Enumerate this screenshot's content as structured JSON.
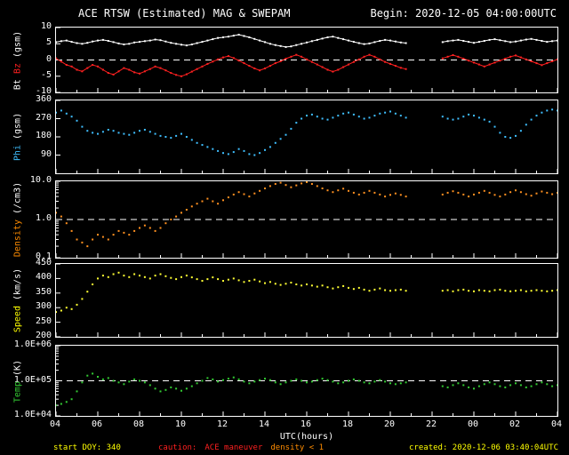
{
  "header": {
    "title": "ACE RTSW (Estimated) MAG & SWEPAM",
    "begin_label": "Begin: 2020-12-05 04:00:00UTC"
  },
  "x_axis": {
    "label": "UTC(hours)",
    "range": [
      4,
      28
    ],
    "ticks": [
      "04",
      "06",
      "08",
      "10",
      "12",
      "14",
      "16",
      "18",
      "20",
      "22",
      "00",
      "02",
      "04"
    ],
    "tick_values": [
      4,
      6,
      8,
      10,
      12,
      14,
      16,
      18,
      20,
      22,
      24,
      26,
      28
    ]
  },
  "footer": {
    "start": "start DOY: 340",
    "caution_label": "caution:",
    "caution_text": "ACE maneuver",
    "caution_density": "density < 1",
    "created": "created: 2020-12-06 03:40:04UTC"
  },
  "colors": {
    "foreground": "#ffffff",
    "background": "#000000",
    "yellow": "#ffff00",
    "red": "#ff2020",
    "orange": "#ff8c00",
    "cyan": "#3fbfff",
    "green": "#33cc33"
  },
  "chart_data": [
    {
      "id": "bt-bz",
      "type": "scatter",
      "title": "Bt / Bz (gsm)",
      "yscale": "linear",
      "ylim": [
        -10,
        10
      ],
      "yticks": [
        {
          "v": 10,
          "label": "10"
        },
        {
          "v": 5,
          "label": "5"
        },
        {
          "v": 0,
          "label": "0"
        },
        {
          "v": -5,
          "label": "-5"
        },
        {
          "v": -10,
          "label": "-10"
        }
      ],
      "refline": 0,
      "ylabel": "Bt Bz (gsm)",
      "ylabel_parts": [
        {
          "text": "Bt ",
          "color": "#ffffff"
        },
        {
          "text": "Bz",
          "color": "#ff2020"
        },
        {
          "text": " (gsm)",
          "color": "#ffffff"
        }
      ],
      "x": {
        "start": 4,
        "step": 0.25,
        "unit": "UTC hours"
      },
      "series": [
        {
          "name": "Bt",
          "color": "#ffffff",
          "line": true,
          "y": [
            5.5,
            5.8,
            6.0,
            5.6,
            5.2,
            5.0,
            5.3,
            5.7,
            6.0,
            6.2,
            5.9,
            5.5,
            5.1,
            4.8,
            5.0,
            5.4,
            5.6,
            5.8,
            6.0,
            6.3,
            6.1,
            5.7,
            5.3,
            5.0,
            4.7,
            4.5,
            4.8,
            5.2,
            5.6,
            6.0,
            6.4,
            6.8,
            7.0,
            7.2,
            7.5,
            7.8,
            7.4,
            7.0,
            6.5,
            6.0,
            5.5,
            5.0,
            4.6,
            4.3,
            4.0,
            4.2,
            4.6,
            5.0,
            5.4,
            5.8,
            6.2,
            6.6,
            7.0,
            7.2,
            6.8,
            6.4,
            6.0,
            5.6,
            5.2,
            4.9,
            5.1,
            5.5,
            5.9,
            6.2,
            6.0,
            5.7,
            5.4,
            5.2,
            null,
            null,
            null,
            null,
            null,
            null,
            5.5,
            5.8,
            6.0,
            6.2,
            5.9,
            5.6,
            5.3,
            5.6,
            5.9,
            6.2,
            6.4,
            6.1,
            5.8,
            5.5,
            5.7,
            6.0,
            6.3,
            6.5,
            6.2,
            5.9,
            5.6,
            5.8,
            6.0
          ]
        },
        {
          "name": "Bz",
          "color": "#ff2020",
          "line": true,
          "y": [
            0.5,
            -0.5,
            -1.5,
            -2.0,
            -3.0,
            -3.5,
            -2.5,
            -1.5,
            -2.0,
            -3.0,
            -4.0,
            -4.5,
            -3.5,
            -2.5,
            -3.0,
            -3.8,
            -4.2,
            -3.5,
            -2.8,
            -2.0,
            -2.5,
            -3.2,
            -4.0,
            -4.6,
            -5.0,
            -4.4,
            -3.6,
            -2.8,
            -2.0,
            -1.2,
            -0.5,
            0.2,
            0.8,
            1.2,
            0.6,
            -0.2,
            -1.0,
            -1.8,
            -2.6,
            -3.2,
            -2.6,
            -1.8,
            -1.0,
            -0.4,
            0.4,
            1.0,
            1.6,
            1.0,
            0.2,
            -0.6,
            -1.4,
            -2.2,
            -3.0,
            -3.6,
            -3.0,
            -2.2,
            -1.4,
            -0.6,
            0.2,
            1.0,
            1.6,
            1.0,
            0.2,
            -0.6,
            -1.2,
            -1.8,
            -2.4,
            -2.8,
            null,
            null,
            null,
            null,
            null,
            null,
            0.5,
            1.0,
            1.5,
            1.0,
            0.4,
            -0.2,
            -0.8,
            -1.4,
            -2.0,
            -1.4,
            -0.8,
            -0.2,
            0.4,
            1.0,
            1.4,
            0.8,
            0.2,
            -0.4,
            -1.0,
            -1.6,
            -1.0,
            -0.4,
            0.2
          ]
        }
      ]
    },
    {
      "id": "phi",
      "type": "scatter",
      "title": "Phi (gsm)",
      "yscale": "linear",
      "ylim": [
        0,
        360
      ],
      "yticks": [
        {
          "v": 360,
          "label": "360"
        },
        {
          "v": 270,
          "label": "270"
        },
        {
          "v": 180,
          "label": "180"
        },
        {
          "v": 90,
          "label": "90"
        }
      ],
      "refline": null,
      "ylabel": "Phi (gsm)",
      "ylabel_parts": [
        {
          "text": "Phi",
          "color": "#3fbfff"
        },
        {
          "text": " (gsm)",
          "color": "#ffffff"
        }
      ],
      "x": {
        "start": 4,
        "step": 0.25,
        "unit": "UTC hours"
      },
      "series": [
        {
          "name": "Phi",
          "color": "#3fbfff",
          "line": false,
          "y": [
            300,
            310,
            295,
            280,
            260,
            230,
            210,
            200,
            195,
            205,
            215,
            210,
            200,
            195,
            190,
            200,
            210,
            215,
            205,
            195,
            185,
            180,
            175,
            185,
            195,
            180,
            165,
            150,
            140,
            130,
            120,
            110,
            100,
            95,
            105,
            120,
            110,
            95,
            90,
            100,
            115,
            130,
            150,
            170,
            190,
            220,
            250,
            270,
            285,
            290,
            280,
            270,
            265,
            275,
            285,
            295,
            300,
            290,
            280,
            270,
            275,
            285,
            295,
            300,
            305,
            295,
            285,
            275,
            null,
            null,
            null,
            null,
            null,
            null,
            280,
            270,
            265,
            270,
            280,
            290,
            285,
            275,
            265,
            255,
            230,
            200,
            180,
            175,
            185,
            210,
            240,
            265,
            285,
            300,
            310,
            315,
            310
          ]
        }
      ]
    },
    {
      "id": "density",
      "type": "scatter",
      "title": "Density (/cm3)",
      "yscale": "log",
      "ylim": [
        0.1,
        10
      ],
      "yticks": [
        {
          "v": 10,
          "label": "10.0"
        },
        {
          "v": 1,
          "label": "1.0"
        },
        {
          "v": 0.1,
          "label": "0.1"
        }
      ],
      "refline": 1,
      "ylabel": "Density (/cm3)",
      "ylabel_parts": [
        {
          "text": "Density",
          "color": "#ff8c00"
        },
        {
          "text": " (/cm3)",
          "color": "#ffffff"
        }
      ],
      "x": {
        "start": 4,
        "step": 0.25,
        "unit": "UTC hours"
      },
      "series": [
        {
          "name": "Density",
          "color": "#ff9020",
          "line": false,
          "y": [
            1.5,
            1.2,
            0.8,
            0.5,
            0.3,
            0.25,
            0.2,
            0.3,
            0.4,
            0.35,
            0.3,
            0.4,
            0.5,
            0.45,
            0.4,
            0.5,
            0.6,
            0.7,
            0.6,
            0.5,
            0.6,
            0.8,
            1.0,
            1.2,
            1.5,
            1.8,
            2.2,
            2.6,
            3.0,
            3.5,
            3.0,
            2.6,
            3.2,
            3.8,
            4.5,
            5.2,
            4.6,
            4.0,
            4.8,
            5.6,
            6.5,
            7.5,
            8.5,
            9.2,
            8.0,
            7.0,
            7.8,
            8.8,
            9.5,
            8.5,
            7.5,
            6.5,
            5.8,
            5.2,
            5.8,
            6.4,
            5.6,
            5.0,
            4.5,
            5.0,
            5.6,
            5.0,
            4.5,
            4.0,
            4.4,
            4.8,
            4.4,
            4.0,
            null,
            null,
            null,
            null,
            null,
            null,
            4.5,
            5.0,
            5.5,
            5.0,
            4.5,
            4.0,
            4.5,
            5.0,
            5.6,
            5.0,
            4.4,
            4.0,
            4.5,
            5.2,
            5.8,
            5.2,
            4.6,
            4.2,
            4.8,
            5.4,
            5.0,
            4.6,
            5.0
          ]
        }
      ]
    },
    {
      "id": "speed",
      "type": "scatter",
      "title": "Speed (km/s)",
      "yscale": "linear",
      "ylim": [
        200,
        450
      ],
      "yticks": [
        {
          "v": 450,
          "label": "450"
        },
        {
          "v": 400,
          "label": "400"
        },
        {
          "v": 350,
          "label": "350"
        },
        {
          "v": 300,
          "label": "300"
        },
        {
          "v": 250,
          "label": "250"
        },
        {
          "v": 200,
          "label": "200"
        }
      ],
      "refline": null,
      "ylabel": "Speed (km/s)",
      "ylabel_parts": [
        {
          "text": "Speed",
          "color": "#ffff00"
        },
        {
          "text": " (km/s)",
          "color": "#ffffff"
        }
      ],
      "x": {
        "start": 4,
        "step": 0.25,
        "unit": "UTC hours"
      },
      "series": [
        {
          "name": "Speed",
          "color": "#ffff33",
          "line": false,
          "y": [
            285,
            290,
            300,
            295,
            310,
            330,
            355,
            380,
            400,
            410,
            405,
            415,
            420,
            410,
            405,
            415,
            410,
            405,
            400,
            410,
            415,
            408,
            402,
            398,
            405,
            410,
            404,
            398,
            392,
            398,
            404,
            398,
            392,
            396,
            400,
            394,
            388,
            392,
            396,
            390,
            384,
            388,
            382,
            378,
            382,
            386,
            380,
            376,
            380,
            376,
            372,
            376,
            370,
            366,
            370,
            374,
            368,
            364,
            368,
            362,
            358,
            362,
            366,
            360,
            358,
            360,
            362,
            358,
            null,
            null,
            null,
            null,
            null,
            null,
            358,
            360,
            356,
            360,
            362,
            358,
            356,
            360,
            358,
            356,
            360,
            362,
            358,
            356,
            358,
            360,
            356,
            358,
            360,
            358,
            356,
            358,
            360
          ]
        }
      ]
    },
    {
      "id": "temp",
      "type": "scatter",
      "title": "Temp (K)",
      "yscale": "log",
      "ylim": [
        10000,
        1000000
      ],
      "yticks": [
        {
          "v": 1000000,
          "label": "1.0E+06"
        },
        {
          "v": 100000,
          "label": "1.0E+05"
        },
        {
          "v": 10000,
          "label": "1.0E+04"
        }
      ],
      "refline": 100000,
      "ylabel": "Temp (K)",
      "ylabel_parts": [
        {
          "text": "Temp",
          "color": "#33cc33"
        },
        {
          "text": " (K)",
          "color": "#ffffff"
        }
      ],
      "x": {
        "start": 4,
        "step": 0.25,
        "unit": "UTC hours"
      },
      "series": [
        {
          "name": "Temp",
          "color": "#33cc33",
          "line": false,
          "y": [
            20000,
            22000,
            25000,
            30000,
            50000,
            90000,
            140000,
            160000,
            130000,
            110000,
            120000,
            100000,
            90000,
            80000,
            95000,
            110000,
            100000,
            90000,
            75000,
            60000,
            50000,
            55000,
            65000,
            60000,
            52000,
            60000,
            70000,
            85000,
            100000,
            120000,
            110000,
            95000,
            105000,
            115000,
            125000,
            110000,
            95000,
            85000,
            95000,
            105000,
            115000,
            105000,
            90000,
            80000,
            90000,
            100000,
            110000,
            100000,
            90000,
            95000,
            105000,
            115000,
            105000,
            95000,
            85000,
            90000,
            100000,
            110000,
            100000,
            90000,
            85000,
            95000,
            105000,
            95000,
            85000,
            80000,
            85000,
            90000,
            null,
            null,
            null,
            null,
            null,
            null,
            70000,
            65000,
            75000,
            85000,
            75000,
            65000,
            60000,
            70000,
            80000,
            90000,
            80000,
            70000,
            65000,
            75000,
            85000,
            75000,
            65000,
            70000,
            80000,
            90000,
            80000,
            70000,
            75000
          ]
        }
      ]
    }
  ]
}
